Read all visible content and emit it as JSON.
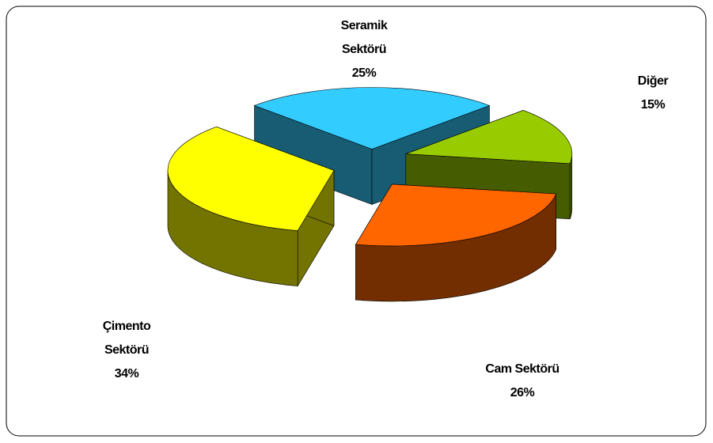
{
  "chart_data": {
    "type": "pie3d",
    "categories": [
      "Seramik Sektörü",
      "Diğer",
      "Cam Sektörü",
      "Çimento Sektörü"
    ],
    "values": [
      25,
      15,
      26,
      34
    ],
    "value_labels": [
      "25%",
      "15%",
      "26%",
      "34%"
    ],
    "colors": [
      "#33ccff",
      "#99cc00",
      "#ff6600",
      "#ffff00"
    ]
  }
}
